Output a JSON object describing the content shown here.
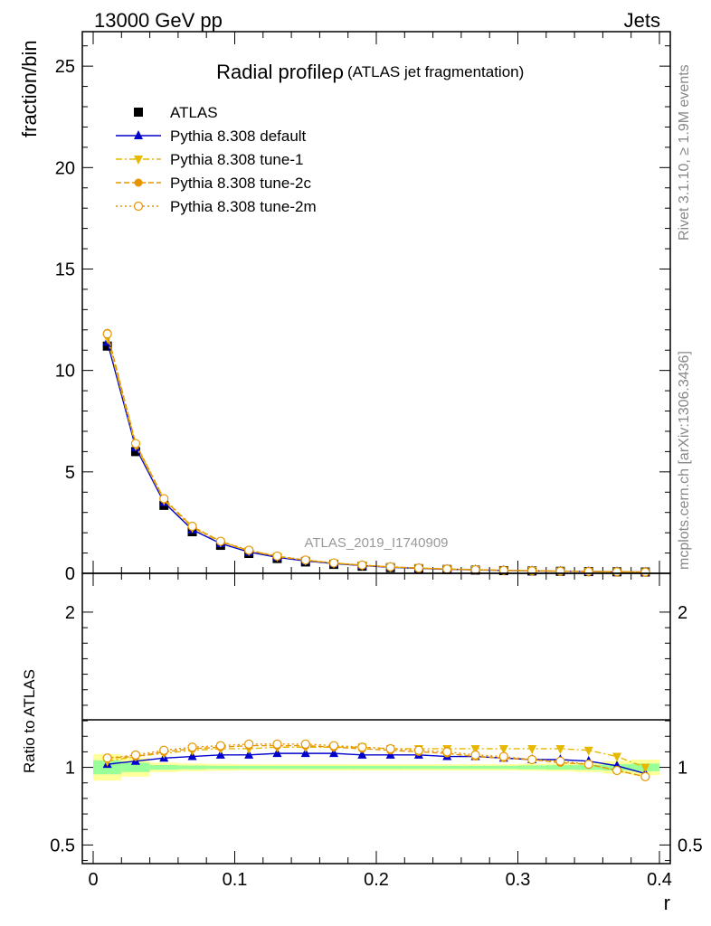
{
  "header": {
    "energy_label": "13000 GeV pp",
    "category_label": "Jets"
  },
  "side_labels": {
    "rivet": "Rivet 3.1.10, ≥ 1.9M events",
    "mcplots": "mcplots.cern.ch [arXiv:1306.3436]"
  },
  "chart_data": [
    {
      "type": "scatter",
      "title": "Radial profileρ",
      "subtitle": "(ATLAS jet fragmentation)",
      "watermark": "ATLAS_2019_I1740909",
      "xlabel": "",
      "ylabel": "fraction/bin",
      "xlim": [
        0,
        0.4
      ],
      "ylim": [
        0,
        26.7
      ],
      "yticks": [
        0,
        5,
        10,
        15,
        20,
        25
      ],
      "ytick_labels": [
        "0",
        "5",
        "10",
        "15",
        "20",
        "25"
      ],
      "legend_position": "top-left",
      "x": [
        0.01,
        0.03,
        0.05,
        0.07,
        0.09,
        0.11,
        0.13,
        0.15,
        0.17,
        0.19,
        0.21,
        0.23,
        0.25,
        0.27,
        0.29,
        0.31,
        0.33,
        0.35,
        0.37,
        0.39
      ],
      "series": [
        {
          "name": "ATLAS",
          "color": "#000000",
          "marker": "square",
          "line": "none",
          "values": [
            11.2,
            6.0,
            3.35,
            2.05,
            1.38,
            0.98,
            0.73,
            0.56,
            0.44,
            0.35,
            0.28,
            0.23,
            0.19,
            0.16,
            0.135,
            0.115,
            0.1,
            0.085,
            0.075,
            0.065
          ]
        },
        {
          "name": "Pythia 8.308 default",
          "color": "#0000cc",
          "marker": "triangle-up",
          "line": "solid",
          "values": [
            11.4,
            6.2,
            3.5,
            2.15,
            1.47,
            1.05,
            0.79,
            0.61,
            0.48,
            0.38,
            0.3,
            0.245,
            0.2,
            0.17,
            0.143,
            0.121,
            0.105,
            0.089,
            0.077,
            0.063
          ]
        },
        {
          "name": "Pythia 8.308 tune-1",
          "color": "#e6b800",
          "marker": "triangle-down",
          "line": "dashdot",
          "values": [
            11.6,
            6.3,
            3.6,
            2.25,
            1.54,
            1.11,
            0.83,
            0.64,
            0.5,
            0.4,
            0.315,
            0.26,
            0.215,
            0.183,
            0.155,
            0.131,
            0.114,
            0.096,
            0.08,
            0.065
          ]
        },
        {
          "name": "Pythia 8.308 tune-2c",
          "color": "#e69500",
          "marker": "circle",
          "line": "dashed",
          "values": [
            11.85,
            6.4,
            3.65,
            2.3,
            1.57,
            1.12,
            0.84,
            0.65,
            0.505,
            0.4,
            0.315,
            0.255,
            0.208,
            0.173,
            0.145,
            0.122,
            0.104,
            0.088,
            0.074,
            0.061
          ]
        },
        {
          "name": "Pythia 8.308 tune-2m",
          "color": "#e69500",
          "marker": "circle-open",
          "line": "dotted",
          "values": [
            11.8,
            6.4,
            3.68,
            2.32,
            1.58,
            1.14,
            0.85,
            0.655,
            0.51,
            0.405,
            0.32,
            0.258,
            0.21,
            0.175,
            0.147,
            0.124,
            0.105,
            0.089,
            0.075,
            0.061
          ]
        }
      ]
    },
    {
      "type": "scatter",
      "xlabel": "r",
      "ylabel": "Ratio to ATLAS",
      "xlim": [
        0,
        0.4
      ],
      "ylim": [
        0.38,
        2.25
      ],
      "xticks": [
        0,
        0.1,
        0.2,
        0.3,
        0.4
      ],
      "xtick_labels": [
        "0",
        "0.1",
        "0.2",
        "0.3",
        "0.4"
      ],
      "yticks": [
        0.5,
        1,
        2
      ],
      "ytick_labels": [
        "0.5",
        "1",
        "2"
      ],
      "bins": [
        [
          0,
          0.02
        ],
        [
          0.02,
          0.04
        ],
        [
          0.04,
          0.06
        ],
        [
          0.06,
          0.08
        ],
        [
          0.08,
          0.1
        ],
        [
          0.1,
          0.12
        ],
        [
          0.12,
          0.14
        ],
        [
          0.14,
          0.16
        ],
        [
          0.16,
          0.18
        ],
        [
          0.18,
          0.2
        ],
        [
          0.2,
          0.22
        ],
        [
          0.22,
          0.24
        ],
        [
          0.24,
          0.26
        ],
        [
          0.26,
          0.28
        ],
        [
          0.28,
          0.3
        ],
        [
          0.3,
          0.32
        ],
        [
          0.32,
          0.34
        ],
        [
          0.34,
          0.36
        ],
        [
          0.36,
          0.38
        ],
        [
          0.38,
          0.4
        ]
      ],
      "band_total": {
        "color": "#ffff99",
        "half_width": [
          0.085,
          0.06,
          0.03,
          0.025,
          0.022,
          0.02,
          0.02,
          0.02,
          0.02,
          0.02,
          0.02,
          0.02,
          0.02,
          0.02,
          0.02,
          0.022,
          0.025,
          0.03,
          0.04,
          0.05
        ]
      },
      "band_stat": {
        "color": "#99ff99",
        "half_width": [
          0.045,
          0.03,
          0.015,
          0.012,
          0.01,
          0.01,
          0.01,
          0.01,
          0.01,
          0.01,
          0.01,
          0.01,
          0.01,
          0.01,
          0.01,
          0.012,
          0.014,
          0.016,
          0.02,
          0.025
        ]
      },
      "x": [
        0.01,
        0.03,
        0.05,
        0.07,
        0.09,
        0.11,
        0.13,
        0.15,
        0.17,
        0.19,
        0.21,
        0.23,
        0.25,
        0.27,
        0.29,
        0.31,
        0.33,
        0.35,
        0.37,
        0.39
      ],
      "series": [
        {
          "name": "Pythia 8.308 default",
          "color": "#0000cc",
          "marker": "triangle-up",
          "line": "solid",
          "values": [
            1.02,
            1.04,
            1.06,
            1.07,
            1.08,
            1.08,
            1.09,
            1.09,
            1.09,
            1.08,
            1.08,
            1.08,
            1.07,
            1.07,
            1.06,
            1.05,
            1.05,
            1.04,
            1.01,
            0.96
          ]
        },
        {
          "name": "Pythia 8.308 tune-1",
          "color": "#e6b800",
          "marker": "triangle-down",
          "line": "dashdot",
          "values": [
            1.04,
            1.07,
            1.09,
            1.11,
            1.12,
            1.12,
            1.13,
            1.13,
            1.13,
            1.13,
            1.12,
            1.12,
            1.12,
            1.12,
            1.12,
            1.12,
            1.12,
            1.11,
            1.07,
            1.0
          ]
        },
        {
          "name": "Pythia 8.308 tune-2c",
          "color": "#e69500",
          "marker": "circle",
          "line": "dashed",
          "values": [
            1.06,
            1.07,
            1.1,
            1.12,
            1.13,
            1.14,
            1.14,
            1.14,
            1.13,
            1.12,
            1.11,
            1.1,
            1.09,
            1.07,
            1.06,
            1.05,
            1.03,
            1.02,
            0.98,
            0.94
          ]
        },
        {
          "name": "Pythia 8.308 tune-2m",
          "color": "#e69500",
          "marker": "circle-open",
          "line": "dotted",
          "values": [
            1.06,
            1.08,
            1.11,
            1.13,
            1.14,
            1.15,
            1.15,
            1.15,
            1.14,
            1.13,
            1.12,
            1.11,
            1.1,
            1.08,
            1.07,
            1.05,
            1.04,
            1.02,
            0.98,
            0.94
          ]
        }
      ]
    }
  ]
}
